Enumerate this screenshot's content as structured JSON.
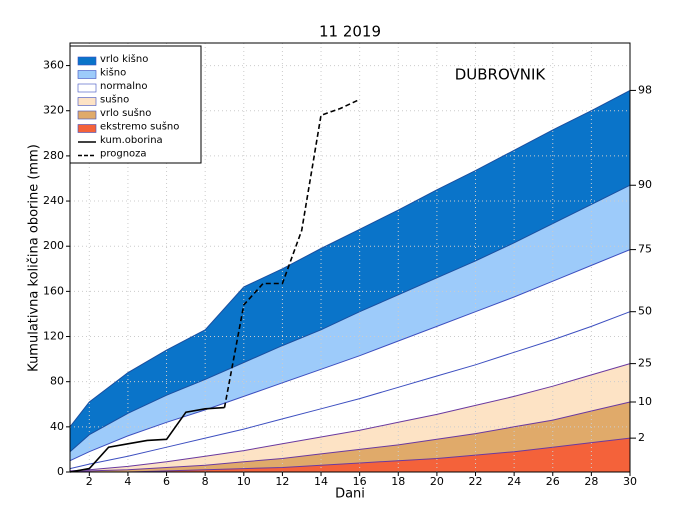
{
  "chart_data": {
    "type": "percentile_bands",
    "title": "11  2019",
    "annotation": "DUBROVNIK",
    "x_label": "Dani",
    "y_label": "Kumulativna količina oborine (mm)",
    "xlim": [
      1,
      30
    ],
    "ylim": [
      0,
      380
    ],
    "xticks": [
      2,
      4,
      6,
      8,
      10,
      12,
      14,
      16,
      18,
      20,
      22,
      24,
      26,
      28,
      30
    ],
    "yticks": [
      0,
      40,
      80,
      120,
      160,
      200,
      240,
      280,
      320,
      360
    ],
    "grid": true,
    "x": [
      1,
      2,
      4,
      6,
      8,
      10,
      12,
      14,
      16,
      18,
      20,
      22,
      24,
      26,
      28,
      30
    ],
    "curves": [
      {
        "percentile": 98,
        "line": "#1a4fa0",
        "fill": "#0a74c9",
        "values": [
          40,
          62,
          88,
          108,
          126,
          164,
          180,
          198,
          215,
          232,
          250,
          267,
          285,
          303,
          320,
          338
        ]
      },
      {
        "percentile": 90,
        "line": "#1a4fa0",
        "fill": "#9dcbfa",
        "values": [
          18,
          33,
          52,
          68,
          82,
          97,
          112,
          126,
          142,
          157,
          172,
          187,
          203,
          220,
          237,
          254
        ]
      },
      {
        "percentile": 75,
        "line": "#3d4fc0",
        "fill": "#ffffff",
        "values": [
          10,
          18,
          32,
          44,
          55,
          67,
          79,
          91,
          103,
          116,
          129,
          142,
          155,
          169,
          183,
          197
        ]
      },
      {
        "percentile": 50,
        "line": "#3d4fc0",
        "fill": "#ffffff",
        "values": [
          3,
          7,
          14,
          22,
          30,
          38,
          47,
          56,
          65,
          75,
          85,
          95,
          106,
          117,
          129,
          142
        ]
      },
      {
        "percentile": 25,
        "line": "#6a3aa0",
        "fill": "#fde3c5",
        "values": [
          1,
          2,
          5,
          9,
          14,
          19,
          25,
          31,
          37,
          44,
          51,
          59,
          67,
          76,
          86,
          96
        ]
      },
      {
        "percentile": 10,
        "line": "#6a3aa0",
        "fill": "#e0aa6a",
        "values": [
          0,
          1,
          2,
          4,
          6,
          9,
          12,
          16,
          20,
          24,
          29,
          34,
          40,
          46,
          54,
          62
        ]
      },
      {
        "percentile": 2,
        "line": "#6a3aa0",
        "fill": "#f4623a",
        "values": [
          0,
          0,
          0,
          1,
          2,
          3,
          4,
          6,
          8,
          10,
          12,
          15,
          18,
          22,
          26,
          30
        ]
      }
    ],
    "band_legend": [
      {
        "name": "vrlo kišno",
        "color": "#0a74c9"
      },
      {
        "name": "kišno",
        "color": "#9dcbfa"
      },
      {
        "name": "normalno",
        "color": "#ffffff"
      },
      {
        "name": "sušno",
        "color": "#fde3c5"
      },
      {
        "name": "vrlo sušno",
        "color": "#e0aa6a"
      },
      {
        "name": "ekstremo sušno",
        "color": "#f4623a"
      }
    ],
    "series": [
      {
        "name": "kum.oborina",
        "color": "#000000",
        "dashed": false,
        "x": [
          1,
          2,
          3,
          4,
          5,
          6,
          7,
          8,
          9
        ],
        "values": [
          0,
          3,
          22,
          25,
          28,
          29,
          53,
          56,
          57
        ]
      },
      {
        "name": "prognoza",
        "color": "#000000",
        "dashed": true,
        "x": [
          9,
          10,
          11,
          12,
          13,
          14,
          15,
          16
        ],
        "values": [
          57,
          148,
          167,
          167,
          214,
          316,
          322,
          330
        ]
      }
    ]
  }
}
